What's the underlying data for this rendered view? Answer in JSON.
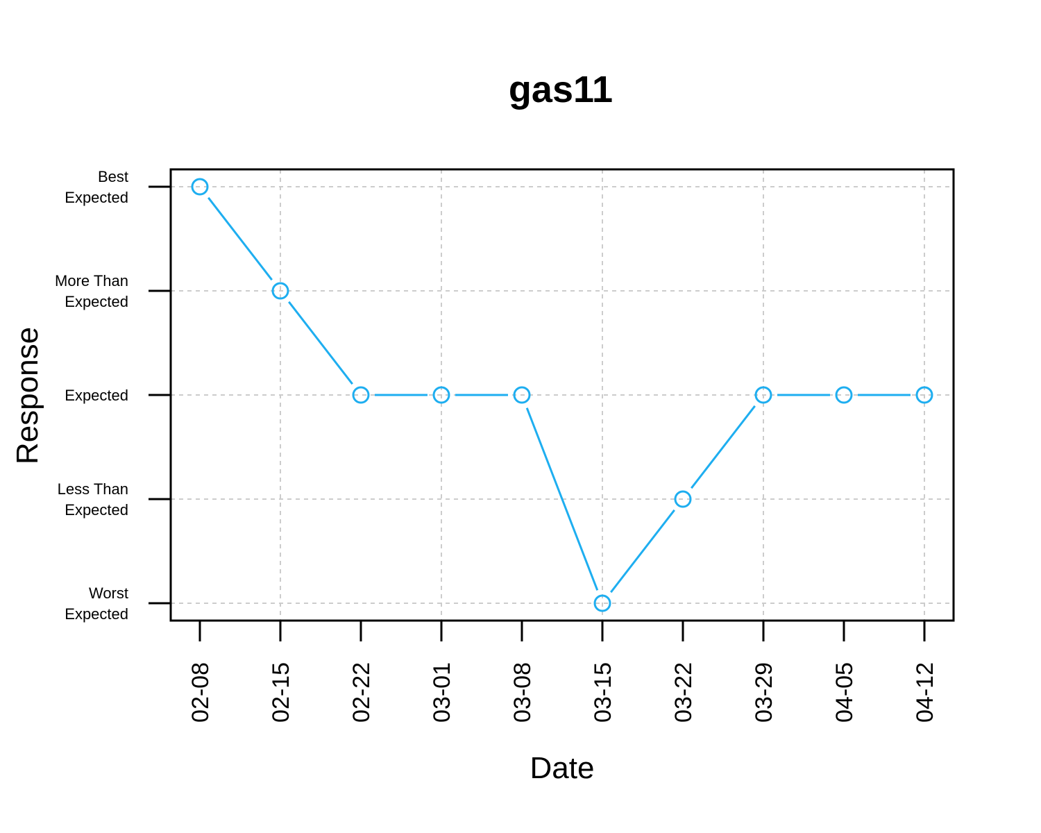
{
  "chart_data": {
    "type": "line",
    "title": "gas11",
    "xlabel": "Date",
    "ylabel": "Response",
    "x": [
      "02-08",
      "02-15",
      "02-22",
      "03-01",
      "03-08",
      "03-15",
      "03-22",
      "03-29",
      "04-05",
      "04-12"
    ],
    "y_categories": [
      "Worst Expected",
      "Less Than Expected",
      "Expected",
      "More Than Expected",
      "Best Expected"
    ],
    "y_tick_lines": [
      [
        "Worst",
        "Expected"
      ],
      [
        "Less Than",
        "Expected"
      ],
      [
        "Expected"
      ],
      [
        "More Than",
        "Expected"
      ],
      [
        "Best",
        "Expected"
      ]
    ],
    "series": [
      {
        "values": [
          "Best Expected",
          "More Than Expected",
          "Expected",
          "Expected",
          "Expected",
          "Worst Expected",
          "Less Than Expected",
          "Expected",
          "Expected",
          "Expected"
        ],
        "color": "#1EAEF0"
      }
    ],
    "grid": true,
    "grid_color": "#CCCCCC",
    "line_style": "segments between open circle markers"
  }
}
